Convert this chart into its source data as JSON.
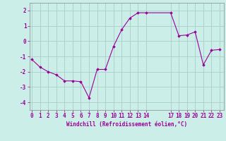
{
  "x": [
    0,
    1,
    2,
    3,
    4,
    5,
    6,
    7,
    8,
    9,
    10,
    11,
    12,
    13,
    14,
    17,
    18,
    19,
    20,
    21,
    22,
    23
  ],
  "y": [
    -1.2,
    -1.7,
    -2.0,
    -2.2,
    -2.6,
    -2.6,
    -2.65,
    -3.7,
    -1.85,
    -1.85,
    -0.35,
    0.75,
    1.5,
    1.85,
    1.85,
    1.85,
    0.35,
    0.4,
    0.6,
    -1.55,
    -0.6,
    -0.55
  ],
  "line_color": "#990099",
  "marker": "D",
  "marker_size": 1.8,
  "marker_linewidth": 0.5,
  "bg_color": "#cceee8",
  "grid_color": "#aacccc",
  "xlabel": "Windchill (Refroidissement éolien,°C)",
  "xlabel_color": "#990099",
  "tick_color": "#990099",
  "label_color": "#990099",
  "ylim": [
    -4.5,
    2.5
  ],
  "yticks": [
    -4,
    -3,
    -2,
    -1,
    0,
    1,
    2
  ],
  "xticks": [
    0,
    1,
    2,
    3,
    4,
    5,
    6,
    7,
    8,
    9,
    10,
    11,
    12,
    13,
    14,
    17,
    18,
    19,
    20,
    21,
    22,
    23
  ],
  "xlim": [
    -0.3,
    23.5
  ],
  "linewidth": 0.8,
  "tick_fontsize": 5.5,
  "xlabel_fontsize": 5.5
}
